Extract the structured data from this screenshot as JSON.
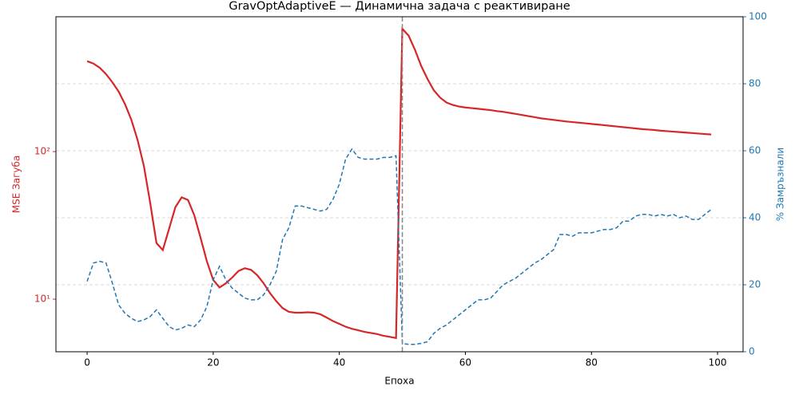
{
  "chart_data": {
    "type": "line",
    "title": "GravOptAdaptiveE — Динамична задача с реактивиране",
    "xlabel": "Епоха",
    "ylabel": "MSE Загуба",
    "y2label": "% Замръзнали",
    "x": [
      0,
      1,
      2,
      3,
      4,
      5,
      6,
      7,
      8,
      9,
      10,
      11,
      12,
      13,
      14,
      15,
      16,
      17,
      18,
      19,
      20,
      21,
      22,
      23,
      24,
      25,
      26,
      27,
      28,
      29,
      30,
      31,
      32,
      33,
      34,
      35,
      36,
      37,
      38,
      39,
      40,
      41,
      42,
      43,
      44,
      45,
      46,
      47,
      48,
      49,
      50,
      51,
      52,
      53,
      54,
      55,
      56,
      57,
      58,
      59,
      60,
      61,
      62,
      63,
      64,
      65,
      66,
      67,
      68,
      69,
      70,
      71,
      72,
      73,
      74,
      75,
      76,
      77,
      78,
      79,
      80,
      81,
      82,
      83,
      84,
      85,
      86,
      87,
      88,
      89,
      90,
      91,
      92,
      93,
      94,
      95,
      96,
      97,
      98,
      99
    ],
    "series": [
      {
        "name": "MSE Загуба",
        "color": "#d62728",
        "dash": false,
        "values": [
          410,
          395,
          370,
          335,
          295,
          255,
          210,
          165,
          120,
          80,
          45,
          24,
          21.5,
          30,
          42,
          49,
          47,
          37,
          26,
          18,
          13.5,
          12,
          12.8,
          14,
          15.5,
          16.2,
          15.8,
          14.5,
          12.8,
          11,
          9.7,
          8.7,
          8.2,
          8.1,
          8.1,
          8.15,
          8.1,
          7.9,
          7.5,
          7.1,
          6.8,
          6.5,
          6.3,
          6.15,
          6.0,
          5.9,
          5.8,
          5.65,
          5.55,
          5.45,
          680,
          610,
          490,
          380,
          310,
          260,
          232,
          215,
          207,
          202,
          199,
          197,
          195,
          193,
          191,
          188,
          186,
          183,
          180,
          177,
          174,
          171,
          168,
          166,
          164,
          162,
          160,
          158.5,
          157,
          155.5,
          154,
          152.5,
          151,
          149.5,
          148,
          146.5,
          145,
          143.5,
          142,
          141,
          140,
          138.5,
          137.5,
          136.5,
          135.5,
          134.5,
          133.5,
          132.5,
          131.5,
          130.5
        ]
      },
      {
        "name": "% Замръзнали",
        "color": "#1f77b4",
        "dash": true,
        "axis": "y2",
        "values": [
          21,
          26.5,
          27,
          26.5,
          20.5,
          14,
          11.5,
          10,
          9,
          9.5,
          10.5,
          12.5,
          10,
          7.5,
          6.5,
          7,
          8,
          7.5,
          9.5,
          13.5,
          21.5,
          25.5,
          21.5,
          19,
          17.5,
          16,
          15.5,
          15.5,
          17,
          20,
          24,
          33.5,
          37,
          43.5,
          43.5,
          43,
          42.5,
          42,
          42.5,
          45.5,
          50,
          57.5,
          60.5,
          58,
          57.5,
          57.5,
          57.5,
          58,
          58,
          58.5,
          2.5,
          2.2,
          2.2,
          2.5,
          3,
          5.5,
          7,
          8,
          9.5,
          11,
          12.5,
          14,
          15.5,
          15.5,
          16,
          18,
          20,
          21,
          22,
          23.5,
          25,
          26.5,
          27.5,
          29,
          30.5,
          35,
          35,
          34.5,
          35.5,
          35.5,
          35.5,
          36,
          36.5,
          36.5,
          37,
          39,
          39,
          40.5,
          41,
          41,
          40.5,
          41,
          40.5,
          41,
          40,
          40.5,
          39.5,
          39.5,
          41,
          42.5
        ]
      }
    ],
    "xlim": [
      -4.95,
      104.05
    ],
    "xticks": [
      0,
      20,
      40,
      60,
      80,
      100
    ],
    "ylim": [
      4.4,
      820
    ],
    "ylog": true,
    "yticks": [
      {
        "value": 10,
        "label": "10¹"
      },
      {
        "value": 100,
        "label": "10²"
      }
    ],
    "y2lim": [
      0,
      100
    ],
    "y2ticks": [
      0,
      20,
      40,
      60,
      80,
      100
    ],
    "grid": true,
    "vline": 50
  }
}
